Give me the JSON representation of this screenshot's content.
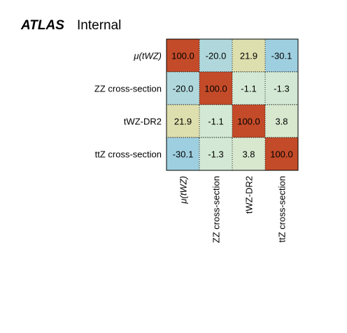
{
  "header": {
    "experiment": "ATLAS",
    "label": "Internal"
  },
  "chart_data": {
    "type": "heatmap",
    "title": "",
    "xlabel": "",
    "ylabel": "",
    "rows": [
      "μ(tWZ)",
      "ZZ cross-section",
      "tWZ-DR2",
      "ttZ cross-section"
    ],
    "columns": [
      "μ(tWZ)",
      "ZZ cross-section",
      "tWZ-DR2",
      "ttZ cross-section"
    ],
    "values": [
      [
        100.0,
        -20.0,
        21.9,
        -30.1
      ],
      [
        -20.0,
        100.0,
        -1.1,
        -1.3
      ],
      [
        21.9,
        -1.1,
        100.0,
        3.8
      ],
      [
        -30.1,
        -1.3,
        3.8,
        100.0
      ]
    ],
    "value_labels": [
      [
        "100.0",
        "-20.0",
        "21.9",
        "-30.1"
      ],
      [
        "-20.0",
        "100.0",
        "-1.1",
        "-1.3"
      ],
      [
        "21.9",
        "-1.1",
        "100.0",
        "3.8"
      ],
      [
        "-30.1",
        "-1.3",
        "3.8",
        "100.0"
      ]
    ],
    "zlim": [
      -100,
      100
    ],
    "colors": {
      "diagonal": "#c44b29",
      "negative_strong": "#9ecfe0",
      "positive_strong": "#e2dba0",
      "near_zero": "#d5ead5",
      "cell_border": "#1a1a1a"
    }
  }
}
